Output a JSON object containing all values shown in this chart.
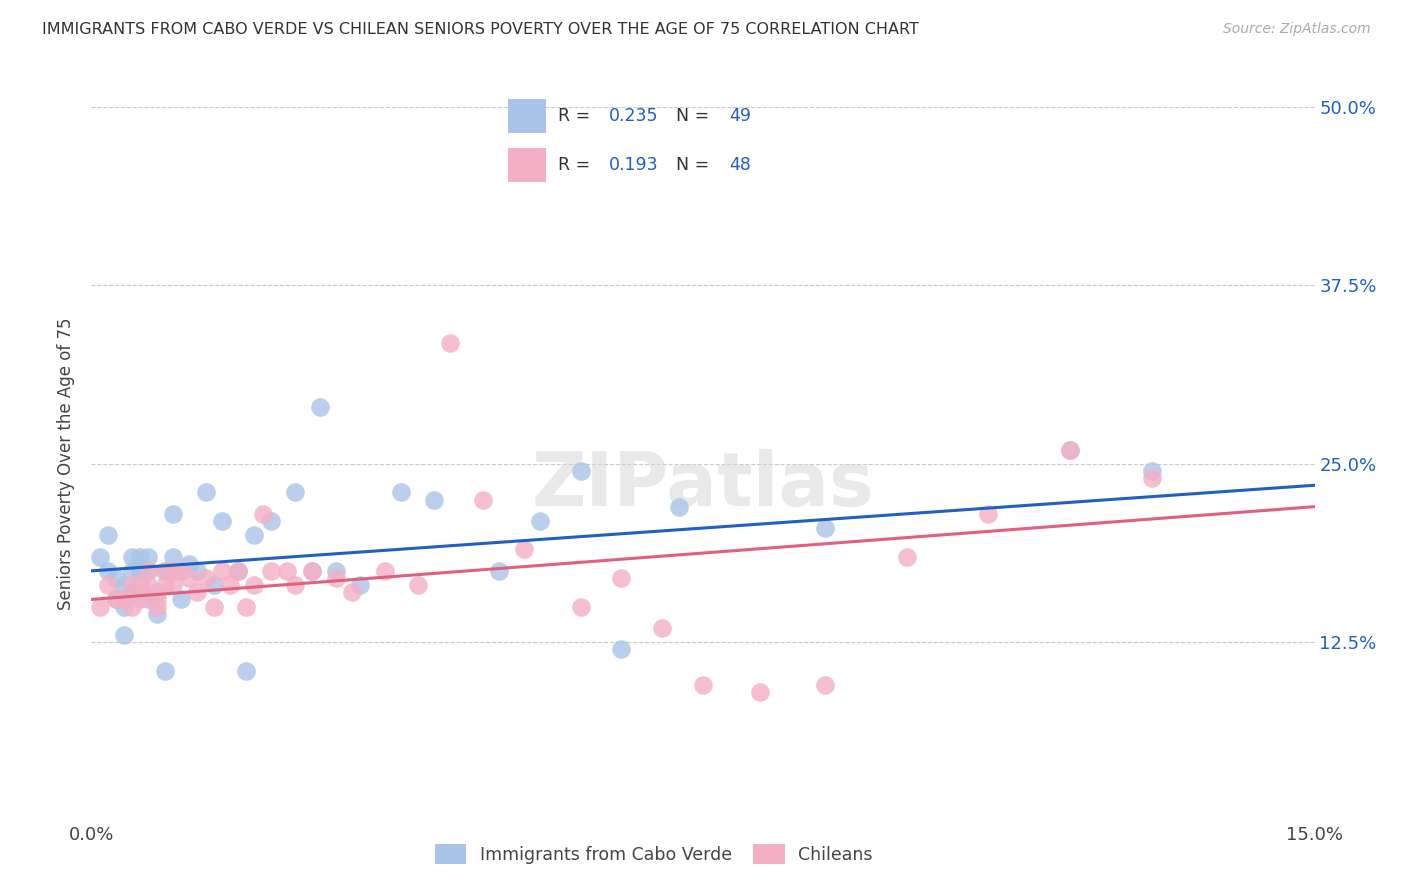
{
  "title": "IMMIGRANTS FROM CABO VERDE VS CHILEAN SENIORS POVERTY OVER THE AGE OF 75 CORRELATION CHART",
  "source": "Source: ZipAtlas.com",
  "xlabel": "",
  "ylabel": "Seniors Poverty Over the Age of 75",
  "xlim": [
    0.0,
    0.15
  ],
  "ylim": [
    0.0,
    0.5
  ],
  "xticks": [
    0.0,
    0.15
  ],
  "xtick_labels": [
    "0.0%",
    "15.0%"
  ],
  "yticks": [
    0.0,
    0.125,
    0.25,
    0.375,
    0.5
  ],
  "ytick_labels": [
    "",
    "12.5%",
    "25.0%",
    "37.5%",
    "50.0%"
  ],
  "legend_label1": "Immigrants from Cabo Verde",
  "legend_label2": "Chileans",
  "r1": 0.235,
  "n1": 49,
  "r2": 0.193,
  "n2": 48,
  "color_blue": "#a8c4e8",
  "color_pink": "#f4afc4",
  "line_blue": "#2060c0",
  "line_pink": "#e06080",
  "watermark": "ZIPatlas",
  "background_color": "#ffffff",
  "grid_color": "#c8c8d0",
  "cabo_verde_x": [
    0.001,
    0.002,
    0.002,
    0.003,
    0.003,
    0.004,
    0.004,
    0.004,
    0.005,
    0.005,
    0.005,
    0.006,
    0.006,
    0.006,
    0.007,
    0.007,
    0.007,
    0.008,
    0.008,
    0.009,
    0.009,
    0.01,
    0.01,
    0.011,
    0.011,
    0.012,
    0.013,
    0.014,
    0.015,
    0.016,
    0.018,
    0.019,
    0.02,
    0.022,
    0.025,
    0.027,
    0.028,
    0.03,
    0.033,
    0.038,
    0.042,
    0.05,
    0.055,
    0.06,
    0.065,
    0.072,
    0.09,
    0.12,
    0.13
  ],
  "cabo_verde_y": [
    0.185,
    0.175,
    0.2,
    0.155,
    0.17,
    0.15,
    0.165,
    0.13,
    0.16,
    0.175,
    0.185,
    0.185,
    0.175,
    0.165,
    0.185,
    0.175,
    0.155,
    0.16,
    0.145,
    0.175,
    0.105,
    0.215,
    0.185,
    0.175,
    0.155,
    0.18,
    0.175,
    0.23,
    0.165,
    0.21,
    0.175,
    0.105,
    0.2,
    0.21,
    0.23,
    0.175,
    0.29,
    0.175,
    0.165,
    0.23,
    0.225,
    0.175,
    0.21,
    0.245,
    0.12,
    0.22,
    0.205,
    0.26,
    0.245
  ],
  "chileans_x": [
    0.001,
    0.002,
    0.003,
    0.004,
    0.005,
    0.005,
    0.006,
    0.006,
    0.007,
    0.007,
    0.008,
    0.008,
    0.009,
    0.009,
    0.01,
    0.01,
    0.011,
    0.012,
    0.013,
    0.014,
    0.015,
    0.016,
    0.017,
    0.018,
    0.019,
    0.02,
    0.021,
    0.022,
    0.024,
    0.025,
    0.027,
    0.03,
    0.032,
    0.036,
    0.04,
    0.044,
    0.048,
    0.053,
    0.06,
    0.065,
    0.07,
    0.075,
    0.082,
    0.09,
    0.1,
    0.11,
    0.12,
    0.13
  ],
  "chileans_y": [
    0.15,
    0.165,
    0.155,
    0.155,
    0.15,
    0.165,
    0.165,
    0.155,
    0.175,
    0.165,
    0.155,
    0.15,
    0.175,
    0.165,
    0.165,
    0.175,
    0.175,
    0.17,
    0.16,
    0.17,
    0.15,
    0.175,
    0.165,
    0.175,
    0.15,
    0.165,
    0.215,
    0.175,
    0.175,
    0.165,
    0.175,
    0.17,
    0.16,
    0.175,
    0.165,
    0.335,
    0.225,
    0.19,
    0.15,
    0.17,
    0.135,
    0.095,
    0.09,
    0.095,
    0.185,
    0.215,
    0.26,
    0.24
  ],
  "cabo_line_x0": 0.0,
  "cabo_line_y0": 0.175,
  "cabo_line_x1": 0.15,
  "cabo_line_y1": 0.235,
  "chileans_line_x0": 0.0,
  "chileans_line_y0": 0.155,
  "chileans_line_x1": 0.15,
  "chileans_line_y1": 0.22
}
